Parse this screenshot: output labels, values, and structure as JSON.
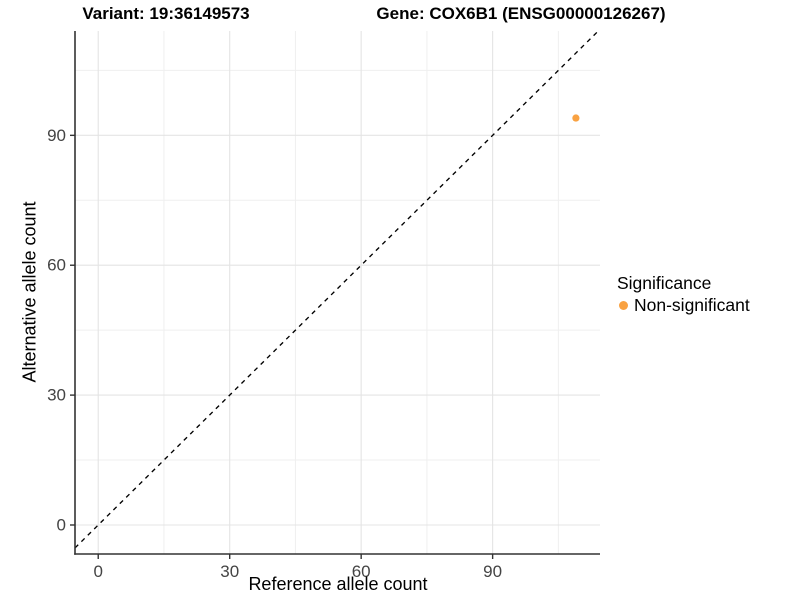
{
  "chart_data": {
    "type": "scatter",
    "title_left": "Variant: 19:36149573",
    "title_right": "Gene: COX6B1 (ENSG00000126267)",
    "xlabel": "Reference allele count",
    "ylabel": "Alternative allele count",
    "xlim": [
      -5.3,
      114.5
    ],
    "ylim": [
      -6.7,
      114.1
    ],
    "x_ticks": [
      0,
      30,
      60,
      90
    ],
    "y_ticks": [
      0,
      30,
      60,
      90
    ],
    "x_minor_ticks": [
      15,
      45,
      75,
      105
    ],
    "y_minor_ticks": [
      15,
      45,
      75,
      105
    ],
    "grid": "on",
    "legend_position": "right",
    "identity_line": {
      "slope": 1,
      "intercept": 0,
      "style": "dashed",
      "color": "#000000"
    },
    "series": [
      {
        "name": "Non-significant",
        "color": "#F9A242",
        "points": [
          {
            "x": 109,
            "y": 94
          }
        ]
      }
    ],
    "legend": {
      "title": "Significance",
      "items": [
        {
          "label": "Non-significant",
          "color": "#F9A242"
        }
      ]
    },
    "colors": {
      "grid_major": "#E4E4E4",
      "grid_minor": "#EFEFEF",
      "axis_line": "#333333",
      "tick_mark": "#333333",
      "tick_label": "#444444",
      "background": "#FFFFFF"
    }
  }
}
